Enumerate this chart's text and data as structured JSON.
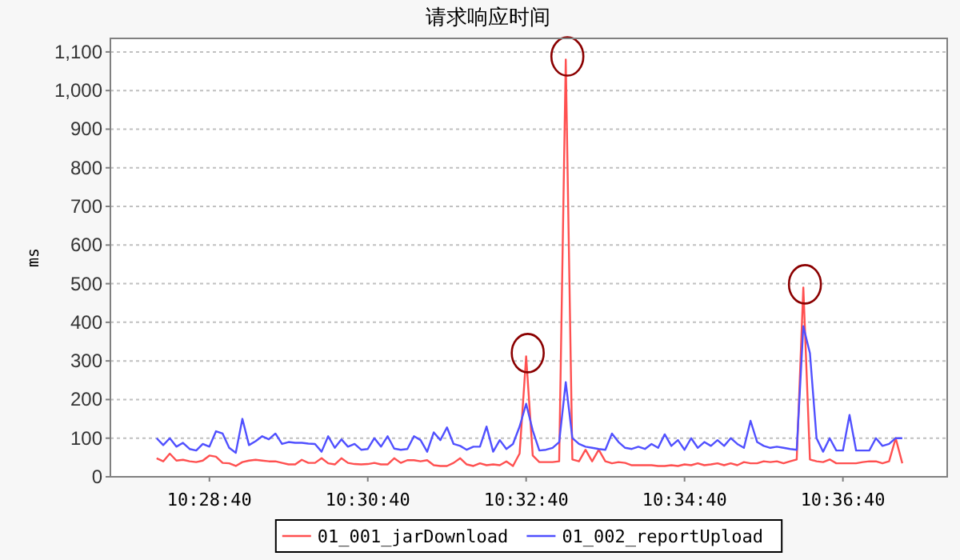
{
  "chart_data": {
    "type": "line",
    "title": "请求响应时间",
    "ylabel": "ms",
    "x": [
      10.46667,
      10.46806,
      10.46944,
      10.47083,
      10.47222,
      10.47361,
      10.475,
      10.47639,
      10.47778,
      10.47917,
      10.48056,
      10.48194,
      10.48333,
      10.48472,
      10.48611,
      10.4875,
      10.48889,
      10.49028,
      10.49167,
      10.49306,
      10.49444,
      10.49583,
      10.49722,
      10.49861,
      10.5,
      10.50139,
      10.50278,
      10.50417,
      10.50556,
      10.50694,
      10.50833,
      10.50972,
      10.51111,
      10.5125,
      10.51389,
      10.51528,
      10.51667,
      10.51806,
      10.51944,
      10.52083,
      10.52222,
      10.52361,
      10.525,
      10.52639,
      10.52778,
      10.52917,
      10.53056,
      10.53194,
      10.53333,
      10.53472,
      10.53611,
      10.5375,
      10.53889,
      10.54028,
      10.54167,
      10.54306,
      10.54444,
      10.54583,
      10.54722,
      10.54861,
      10.55,
      10.55139,
      10.55278,
      10.55417,
      10.55556,
      10.55694,
      10.55833,
      10.55972,
      10.56111,
      10.5625,
      10.56389,
      10.56528,
      10.56667,
      10.56806,
      10.56944,
      10.57083,
      10.57222,
      10.57361,
      10.575,
      10.57639,
      10.57778,
      10.57917,
      10.58056,
      10.58194,
      10.58333,
      10.58472,
      10.58611,
      10.5875,
      10.58889,
      10.59028,
      10.59167,
      10.59306,
      10.59444,
      10.59583,
      10.59722,
      10.59861,
      10.6,
      10.60139,
      10.60278,
      10.60417,
      10.60556,
      10.60694,
      10.60833,
      10.60972,
      10.61111,
      10.6125,
      10.61389,
      10.61528,
      10.61667,
      10.61806,
      10.61944,
      10.62083,
      10.62222,
      10.62361
    ],
    "series": [
      {
        "name": "01_001_jarDownload",
        "color": "#ff5050",
        "values": [
          48,
          40,
          60,
          42,
          44,
          40,
          38,
          42,
          55,
          52,
          36,
          35,
          28,
          38,
          42,
          44,
          42,
          40,
          40,
          36,
          32,
          32,
          44,
          36,
          36,
          48,
          35,
          32,
          48,
          36,
          33,
          32,
          33,
          36,
          32,
          32,
          48,
          36,
          43,
          43,
          40,
          43,
          30,
          28,
          28,
          36,
          48,
          32,
          28,
          35,
          30,
          32,
          30,
          40,
          28,
          60,
          312,
          55,
          38,
          38,
          38,
          40,
          1080,
          45,
          40,
          70,
          40,
          70,
          40,
          35,
          38,
          36,
          30,
          30,
          30,
          30,
          28,
          28,
          30,
          28,
          32,
          30,
          35,
          30,
          32,
          35,
          30,
          35,
          30,
          38,
          35,
          35,
          40,
          38,
          40,
          35,
          40,
          45,
          490,
          45,
          40,
          38,
          45,
          35,
          35,
          35,
          35,
          38,
          40,
          40,
          35,
          40,
          100,
          35
        ]
      },
      {
        "name": "01_002_reportUpload",
        "color": "#5050ff",
        "values": [
          100,
          82,
          100,
          78,
          88,
          72,
          68,
          85,
          78,
          118,
          112,
          75,
          62,
          150,
          82,
          92,
          105,
          97,
          112,
          85,
          90,
          88,
          88,
          86,
          85,
          65,
          105,
          75,
          97,
          78,
          85,
          70,
          72,
          100,
          78,
          105,
          73,
          70,
          72,
          105,
          95,
          65,
          115,
          95,
          128,
          85,
          80,
          70,
          78,
          78,
          130,
          65,
          95,
          72,
          85,
          130,
          189,
          120,
          68,
          70,
          75,
          90,
          245,
          100,
          85,
          78,
          75,
          72,
          70,
          112,
          90,
          75,
          72,
          78,
          72,
          85,
          75,
          110,
          80,
          95,
          70,
          100,
          75,
          90,
          80,
          95,
          80,
          100,
          85,
          75,
          145,
          90,
          80,
          75,
          78,
          75,
          72,
          70,
          390,
          320,
          100,
          65,
          100,
          68,
          68,
          160,
          68,
          68,
          68,
          100,
          80,
          85,
          100,
          100
        ]
      }
    ],
    "xlim": [
      10.45694,
      10.63306
    ],
    "xticks": [
      {
        "value": 10.47778,
        "label": "10:28:40"
      },
      {
        "value": 10.51111,
        "label": "10:30:40"
      },
      {
        "value": 10.54444,
        "label": "10:32:40"
      },
      {
        "value": 10.57778,
        "label": "10:34:40"
      },
      {
        "value": 10.61111,
        "label": "10:36:40"
      }
    ],
    "ylim": [
      0,
      1135
    ],
    "yticks": [
      0,
      100,
      200,
      300,
      400,
      500,
      600,
      700,
      800,
      900,
      {
        "value": 1000,
        "label": "1,000"
      },
      {
        "value": 1100,
        "label": "1,100"
      }
    ],
    "grid": "y",
    "legend": "bottom"
  }
}
